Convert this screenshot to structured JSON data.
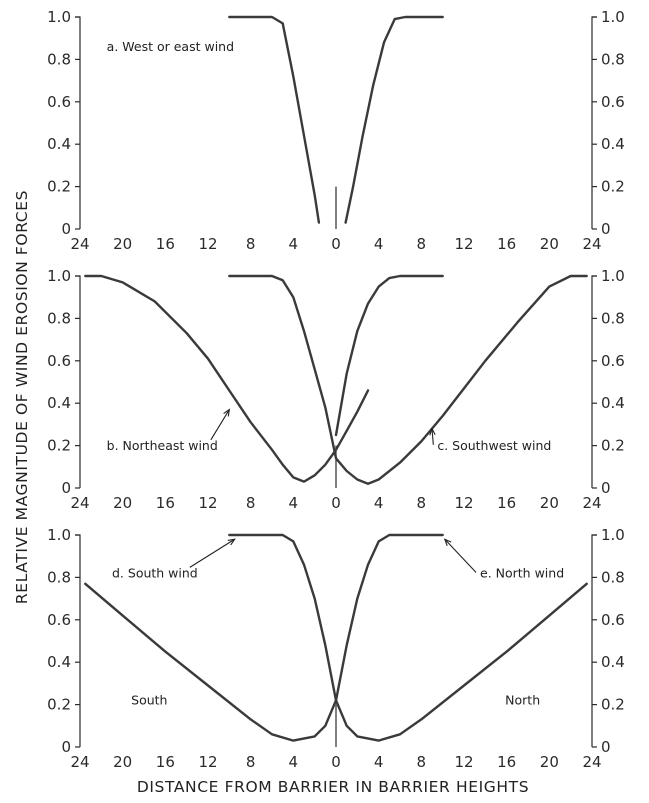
{
  "chart_data": {
    "type": "line",
    "ylabel": "RELATIVE MAGNITUDE OF WIND EROSION FORCES",
    "xlabel": "DISTANCE FROM BARRIER IN BARRIER HEIGHTS",
    "x_tick_labels": [
      "24",
      "20",
      "16",
      "12",
      "8",
      "4",
      "0",
      "4",
      "8",
      "12",
      "16",
      "20",
      "24"
    ],
    "y_tick_labels": [
      "0",
      "0.2",
      "0.4",
      "0.6",
      "0.8",
      "1.0"
    ],
    "xlim": [
      -24,
      24
    ],
    "ylim": [
      0,
      1
    ],
    "panels": [
      {
        "id": "a",
        "label": "a. West or east wind",
        "series": [
          {
            "name": "",
            "x": [
              -10,
              -6,
              -5,
              -4,
              -3,
              -2,
              -1.6
            ],
            "y": [
              1.0,
              1.0,
              0.97,
              0.72,
              0.44,
              0.16,
              0.03
            ]
          },
          {
            "name": "",
            "x": [
              0.9,
              1.6,
              2.5,
              3.5,
              4.5,
              5.5,
              6.5,
              10
            ],
            "y": [
              0.03,
              0.2,
              0.44,
              0.68,
              0.88,
              0.99,
              1.0,
              1.0
            ]
          }
        ],
        "annotations": [],
        "side_labels": []
      },
      {
        "id": "bc",
        "label": "",
        "series": [
          {
            "name": "",
            "x": [
              -23.5,
              -22,
              -20,
              -17,
              -14,
              -12,
              -10,
              -8,
              -6,
              -5,
              -4,
              -3,
              -2,
              -1,
              0,
              1,
              2,
              3
            ],
            "y": [
              1.0,
              1.0,
              0.97,
              0.88,
              0.73,
              0.61,
              0.46,
              0.31,
              0.18,
              0.11,
              0.05,
              0.03,
              0.06,
              0.11,
              0.18,
              0.27,
              0.36,
              0.46
            ]
          },
          {
            "name": "",
            "x": [
              -10,
              -6,
              -5,
              -4,
              -3,
              -2,
              -1,
              0,
              1,
              2,
              3,
              4,
              6,
              8,
              10,
              12,
              14,
              17,
              20,
              22,
              23.5
            ],
            "y": [
              1.0,
              1.0,
              0.98,
              0.9,
              0.74,
              0.56,
              0.38,
              0.14,
              0.08,
              0.04,
              0.02,
              0.04,
              0.12,
              0.22,
              0.34,
              0.47,
              0.6,
              0.78,
              0.95,
              1.0,
              1.0
            ]
          },
          {
            "name": "",
            "x": [
              0,
              1,
              2,
              3,
              4,
              5,
              6,
              10
            ],
            "y": [
              0.25,
              0.54,
              0.74,
              0.87,
              0.95,
              0.99,
              1.0,
              1.0
            ]
          }
        ],
        "annotations": [
          {
            "text": "b. Northeast wind",
            "x": -21.5,
            "y": 0.18,
            "arrow_to": {
              "x": -10,
              "y": 0.37
            }
          },
          {
            "text": "c. Southwest wind",
            "x": 9.5,
            "y": 0.18,
            "arrow_to": {
              "x": 9,
              "y": 0.28
            }
          }
        ],
        "side_labels": []
      },
      {
        "id": "de",
        "label": "",
        "series": [
          {
            "name": "",
            "x": [
              -23.5,
              -20,
              -16,
              -12,
              -8,
              -6,
              -4,
              -2,
              -1,
              0,
              1,
              2,
              3,
              4,
              5,
              6,
              10
            ],
            "y": [
              0.77,
              0.62,
              0.45,
              0.29,
              0.13,
              0.06,
              0.03,
              0.05,
              0.1,
              0.22,
              0.48,
              0.7,
              0.86,
              0.97,
              1.0,
              1.0,
              1.0
            ]
          },
          {
            "name": "",
            "x": [
              -10,
              -5,
              -4,
              -3,
              -2,
              -1,
              0,
              1,
              2,
              4,
              6,
              8,
              12,
              16,
              20,
              23.5
            ],
            "y": [
              1.0,
              1.0,
              0.97,
              0.86,
              0.7,
              0.48,
              0.22,
              0.1,
              0.05,
              0.03,
              0.06,
              0.13,
              0.29,
              0.45,
              0.62,
              0.77
            ]
          }
        ],
        "annotations": [
          {
            "text": "d. South wind",
            "x": -21,
            "y": 0.8,
            "arrow_to": {
              "x": -9.5,
              "y": 0.98
            }
          },
          {
            "text": "e. North wind",
            "x": 13.5,
            "y": 0.8,
            "arrow_to": {
              "x": 10.2,
              "y": 0.98
            }
          }
        ],
        "side_labels": [
          {
            "text": "South",
            "x": -17.5,
            "y": 0.2
          },
          {
            "text": "North",
            "x": 17.5,
            "y": 0.2
          }
        ]
      }
    ]
  }
}
